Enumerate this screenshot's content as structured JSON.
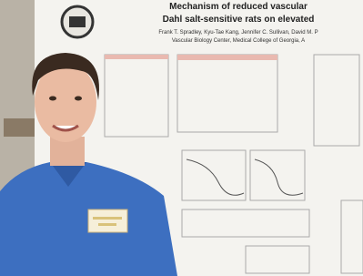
{
  "poster": {
    "title_line1": "Mechanism of reduced vascular",
    "title_line2": "Dahl salt-sensitive rats on elevated",
    "authors": "Frank T. Spradley, Kyu-Tae Kang, Jennifer C. Sullivan, David M. P",
    "affiliation": "Vascular Biology Center, Medical College of Georgia, A"
  }
}
